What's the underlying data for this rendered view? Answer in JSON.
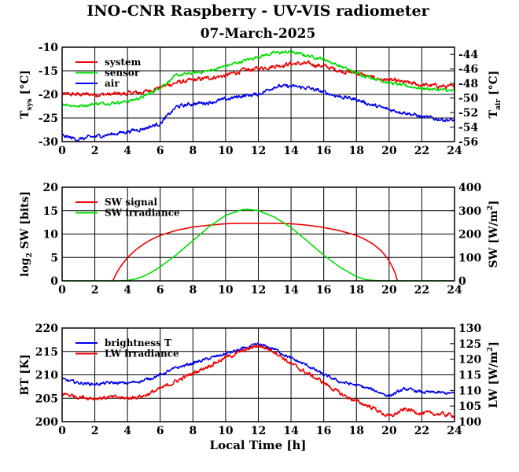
{
  "title": "INO-CNR Raspberry - UV-VIS radiometer",
  "subtitle": "07-March-2025",
  "xlabel": "Local Time [h]",
  "colors": {
    "red": "#ee0000",
    "green": "#00dd00",
    "blue": "#0000ee",
    "grid": "#000000"
  },
  "chart_data": [
    {
      "type": "line",
      "ylabel": "T_sys [°C]",
      "ylabel_main": "T",
      "ylabel_sub": "sys",
      "ylabel_tail": " [°C]",
      "y2label": "T_air [°C]",
      "y2label_main": "T",
      "y2label_sub": "air",
      "y2label_tail": " [°C]",
      "xlim": [
        0,
        24
      ],
      "ylim": [
        -30,
        -10
      ],
      "y2lim": [
        -56,
        -43
      ],
      "xticks": [
        0,
        2,
        4,
        6,
        8,
        10,
        12,
        14,
        16,
        18,
        20,
        22,
        24
      ],
      "yticks": [
        -30,
        -25,
        -20,
        -15,
        -10
      ],
      "y2ticks": [
        -56,
        -54,
        -52,
        -50,
        -48,
        -46,
        -44
      ],
      "grid": true,
      "legend_position": "top-left",
      "series": [
        {
          "name": "system",
          "color": "#ee0000",
          "axis": "left",
          "noise": 0.35,
          "x": [
            0,
            1,
            2,
            3,
            4,
            5,
            6,
            7,
            8,
            9,
            10,
            11,
            12,
            13,
            14,
            15,
            16,
            17,
            18,
            19,
            20,
            21,
            22,
            23,
            24
          ],
          "y": [
            -20,
            -20,
            -20,
            -20,
            -19.8,
            -19.5,
            -18.5,
            -17.5,
            -17,
            -16.5,
            -16,
            -15,
            -14.5,
            -14,
            -13.5,
            -13.5,
            -14,
            -15,
            -15.5,
            -16.5,
            -17,
            -17.5,
            -18,
            -18.2,
            -18.5
          ]
        },
        {
          "name": "sensor",
          "color": "#00dd00",
          "axis": "left",
          "noise": 0.25,
          "x": [
            0,
            1,
            2,
            3,
            4,
            5,
            6,
            7,
            8,
            9,
            10,
            11,
            12,
            13,
            14,
            15,
            16,
            17,
            18,
            19,
            20,
            21,
            22,
            23,
            24
          ],
          "y": [
            -22,
            -22.5,
            -22,
            -21.8,
            -21.5,
            -20.5,
            -18.5,
            -16,
            -15.5,
            -15,
            -14,
            -13,
            -12,
            -11.2,
            -11,
            -11.8,
            -12.5,
            -14,
            -15.5,
            -16.5,
            -17.5,
            -18.2,
            -18.7,
            -19,
            -19.3
          ]
        },
        {
          "name": "air",
          "color": "#0000ee",
          "axis": "right",
          "noise": 0.2,
          "x": [
            0,
            1,
            2,
            3,
            4,
            5,
            6,
            7,
            8,
            9,
            10,
            11,
            12,
            13,
            14,
            15,
            16,
            17,
            18,
            19,
            20,
            21,
            22,
            23,
            24
          ],
          "y": [
            -55.2,
            -55.7,
            -55.3,
            -55,
            -54.6,
            -54.2,
            -53.5,
            -51.2,
            -50.8,
            -50.6,
            -50.2,
            -49.7,
            -49.5,
            -48.4,
            -48.4,
            -48.6,
            -49.2,
            -49.8,
            -50.2,
            -51.0,
            -51.6,
            -52.0,
            -52.6,
            -52.9,
            -53.1
          ]
        }
      ]
    },
    {
      "type": "line",
      "ylabel": "log2 SW [bits]",
      "ylabel_main": "log",
      "ylabel_sub": "2",
      "ylabel_tail": " SW [bits]",
      "y2label": "SW [W/m2]",
      "y2label_main": "SW [W/m",
      "y2label_sup": "2",
      "y2label_tail": "]",
      "xlim": [
        0,
        24
      ],
      "ylim": [
        0,
        20
      ],
      "y2lim": [
        0,
        400
      ],
      "xticks": [
        0,
        2,
        4,
        6,
        8,
        10,
        12,
        14,
        16,
        18,
        20,
        22,
        24
      ],
      "yticks": [
        0,
        5,
        10,
        15,
        20
      ],
      "y2ticks": [
        0,
        100,
        200,
        300,
        400
      ],
      "grid": true,
      "legend_position": "top-left",
      "series": [
        {
          "name": "SW signal",
          "color": "#ee0000",
          "axis": "left",
          "noise": 0,
          "x": [
            3.1,
            3.3,
            3.6,
            4,
            4.5,
            5,
            5.5,
            6,
            7,
            8,
            9,
            10,
            11,
            12,
            13,
            14,
            15,
            16,
            17,
            18,
            18.5,
            19,
            19.5,
            19.9,
            20.2,
            20.4,
            20.5
          ],
          "y": [
            0,
            1.5,
            3.2,
            5,
            6.6,
            7.9,
            8.9,
            9.7,
            10.8,
            11.5,
            11.9,
            12.2,
            12.3,
            12.3,
            12.3,
            12.2,
            11.9,
            11.4,
            10.7,
            9.7,
            8.9,
            7.9,
            6.5,
            4.8,
            3,
            1.4,
            0
          ]
        },
        {
          "name": "SW irradiance",
          "color": "#00dd00",
          "axis": "right",
          "noise": 0,
          "x": [
            0,
            3.5,
            4,
            4.5,
            5,
            5.5,
            6,
            7,
            8,
            9,
            10,
            11,
            11.3,
            12,
            13,
            14,
            15,
            16,
            17,
            18,
            18.5,
            19,
            19.5,
            24
          ],
          "y": [
            0,
            0,
            2,
            8,
            20,
            38,
            60,
            112,
            172,
            232,
            280,
            304,
            306,
            300,
            272,
            228,
            170,
            110,
            58,
            18,
            6,
            2,
            0,
            0
          ]
        }
      ]
    },
    {
      "type": "line",
      "ylabel": "BT [K]",
      "y2label": "LW [W/m2]",
      "y2label_main": "LW [W/m",
      "y2label_sup": "2",
      "y2label_tail": "]",
      "xlim": [
        0,
        24
      ],
      "ylim": [
        200,
        220
      ],
      "y2lim": [
        100,
        130
      ],
      "xticks": [
        0,
        2,
        4,
        6,
        8,
        10,
        12,
        14,
        16,
        18,
        20,
        22,
        24
      ],
      "yticks": [
        200,
        205,
        210,
        215,
        220
      ],
      "y2ticks": [
        100,
        105,
        110,
        115,
        120,
        125,
        130
      ],
      "grid": true,
      "legend_position": "top-left",
      "series": [
        {
          "name": "brightness T",
          "color": "#0000ee",
          "axis": "left",
          "noise": 0.25,
          "x": [
            0,
            1,
            2,
            3,
            4,
            5,
            6,
            7,
            8,
            9,
            10,
            11,
            12,
            13,
            14,
            15,
            16,
            17,
            18,
            19,
            20,
            21,
            22,
            23,
            24
          ],
          "y": [
            209,
            208.3,
            208,
            208.3,
            208.2,
            208.8,
            210,
            211.5,
            212.5,
            213.5,
            214.5,
            215.5,
            216.5,
            215.5,
            213.5,
            212,
            210,
            208.5,
            207.8,
            206.8,
            205.5,
            207,
            206.3,
            206.2,
            206
          ]
        },
        {
          "name": "LW irradiance",
          "color": "#ee0000",
          "axis": "right",
          "noise": 0.5,
          "x": [
            0,
            1,
            2,
            3,
            4,
            5,
            6,
            7,
            8,
            9,
            10,
            11,
            12,
            13,
            14,
            15,
            16,
            17,
            18,
            19,
            20,
            21,
            22,
            23,
            24
          ],
          "y": [
            109,
            108,
            107.5,
            107.8,
            107.5,
            108.3,
            110.5,
            113,
            115.5,
            118,
            120.5,
            122.5,
            124.5,
            122.5,
            118.5,
            115.5,
            112.5,
            109,
            106.5,
            104.5,
            101.5,
            104,
            102.7,
            102.5,
            102
          ]
        }
      ]
    }
  ]
}
